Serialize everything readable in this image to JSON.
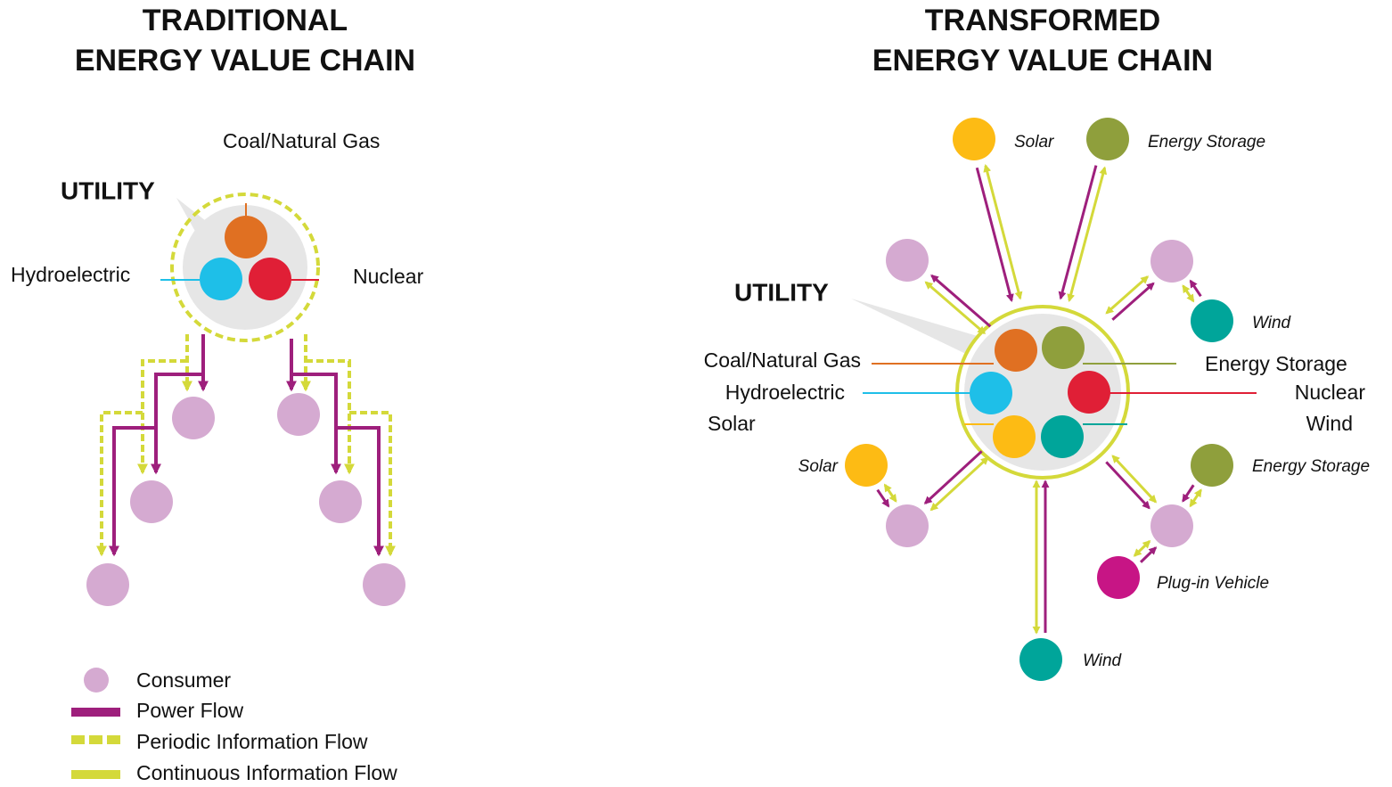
{
  "left": {
    "title_line1": "TRADITIONAL",
    "title_line2": "ENERGY VALUE CHAIN",
    "utility": "UTILITY",
    "sources": [
      "Coal/Natural Gas",
      "Hydroelectric",
      "Nuclear"
    ]
  },
  "right": {
    "title_line1": "TRANSFORMED",
    "title_line2": "ENERGY VALUE CHAIN",
    "utility": "UTILITY",
    "sources": [
      "Coal/Natural Gas",
      "Hydroelectric",
      "Solar",
      "Energy Storage",
      "Nuclear",
      "Wind"
    ],
    "nodes": [
      "Solar",
      "Energy Storage",
      "Wind",
      "Solar",
      "Energy Storage",
      "Plug-in Vehicle",
      "Wind"
    ]
  },
  "legend": [
    "Consumer",
    "Power Flow",
    "Periodic Information Flow",
    "Continuous Information Flow"
  ]
}
